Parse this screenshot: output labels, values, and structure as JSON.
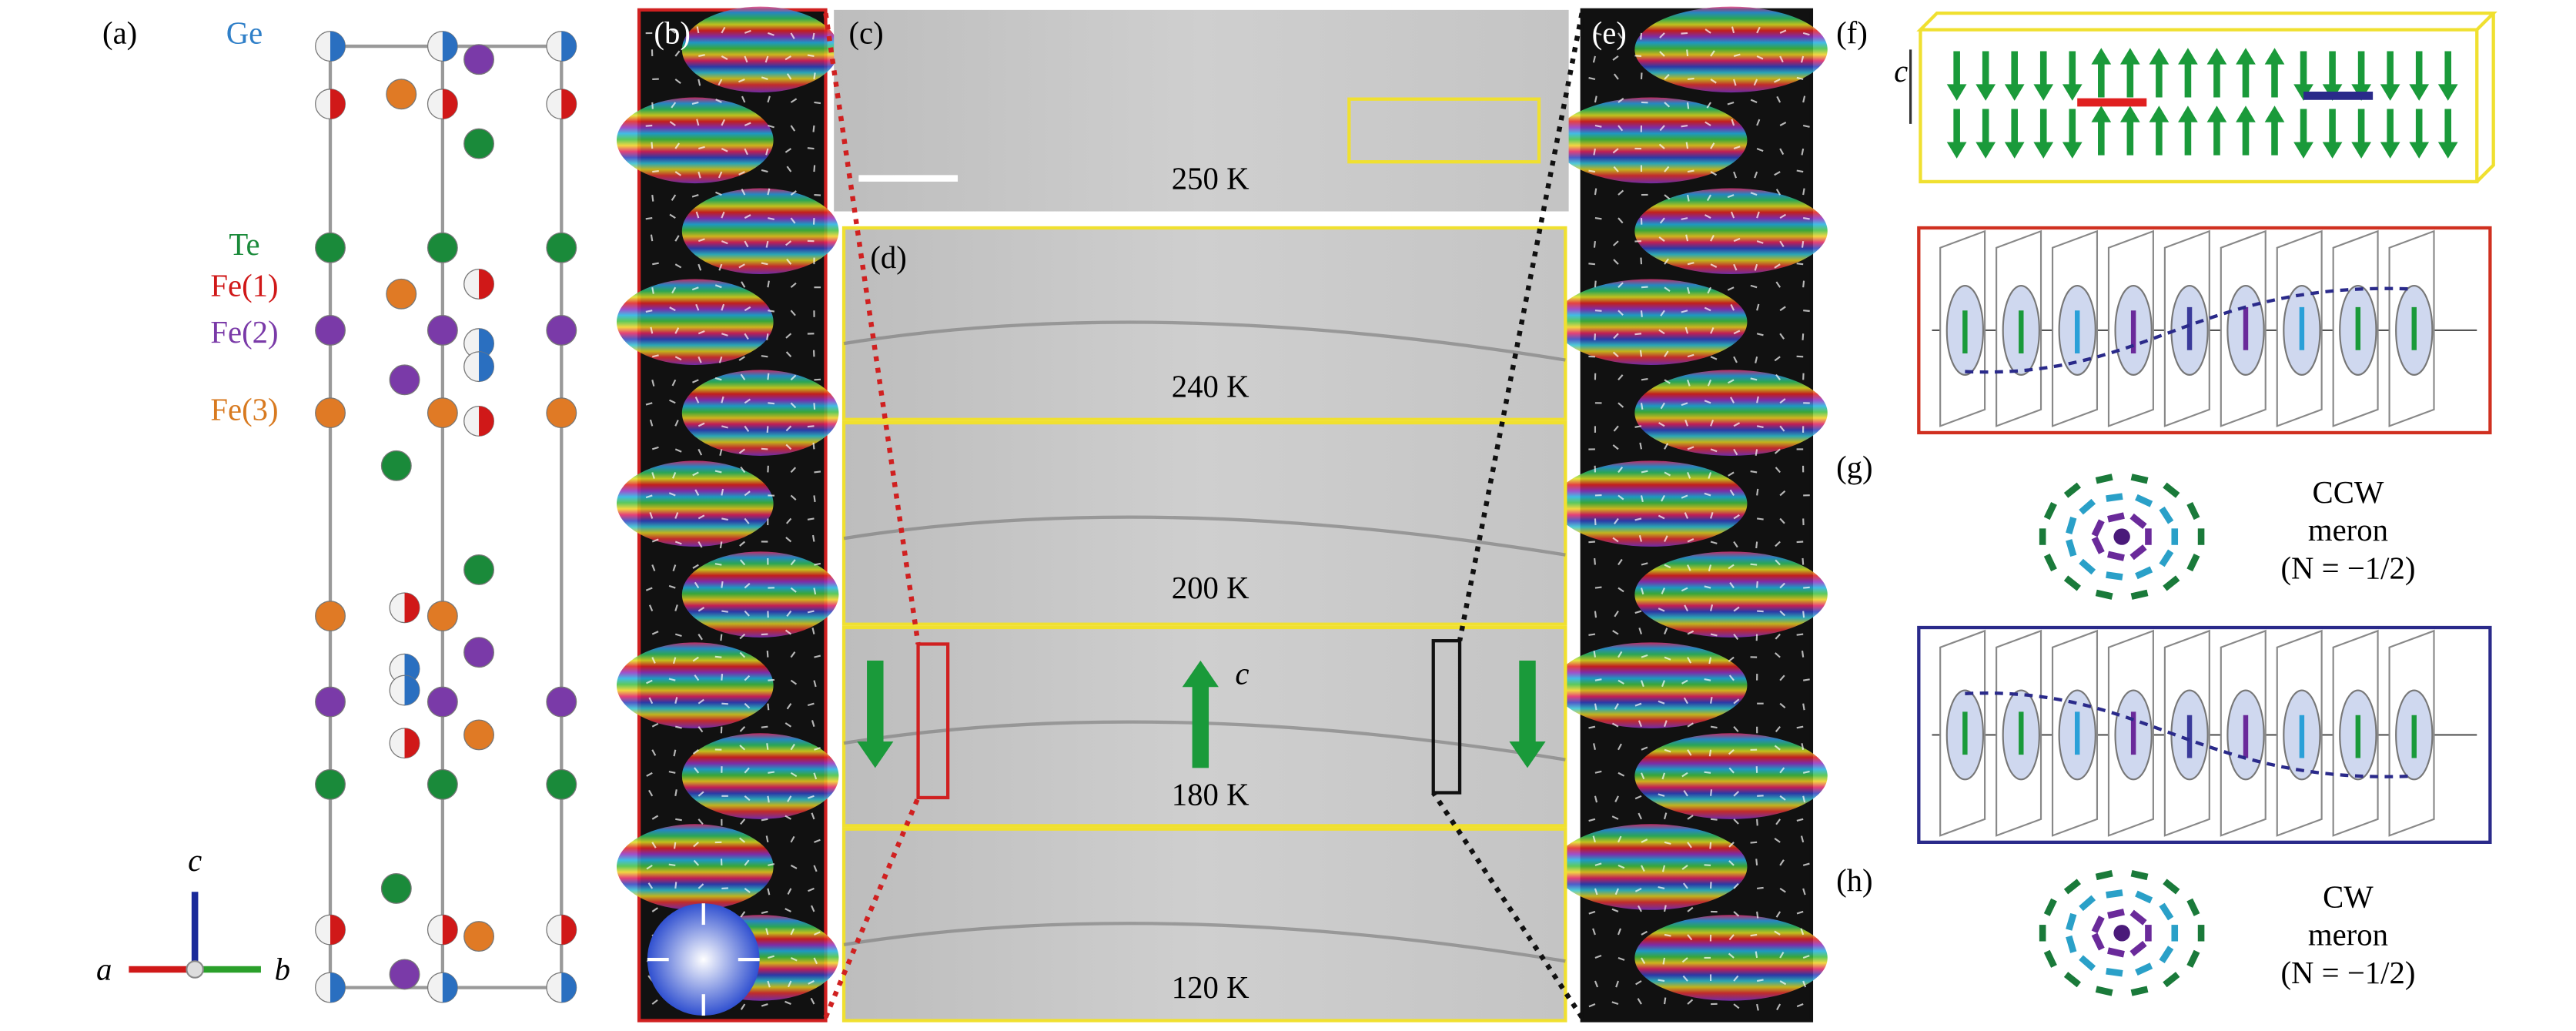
{
  "panels": {
    "a": "(a)",
    "b": "(b)",
    "c": "(c)",
    "d": "(d)",
    "e": "(e)",
    "f": "(f)",
    "g": "(g)",
    "h": "(h)"
  },
  "legend": {
    "ge": "Ge",
    "te": "Te",
    "fe1": "Fe(1)",
    "fe2": "Fe(2)",
    "fe3": "Fe(3)"
  },
  "axes": {
    "c": "c",
    "a": "a",
    "b": "b"
  },
  "temperatures": {
    "c": "250 K",
    "d1": "240 K",
    "d2": "200 K",
    "d3": "180 K",
    "d4": "120 K"
  },
  "d_axis": "c",
  "f_axis": "c",
  "g": {
    "name": "CCW",
    "kind": "meron",
    "charge": "(N = −1/2)"
  },
  "h": {
    "name": "CW",
    "kind": "meron",
    "charge": "(N = −1/2)"
  }
}
